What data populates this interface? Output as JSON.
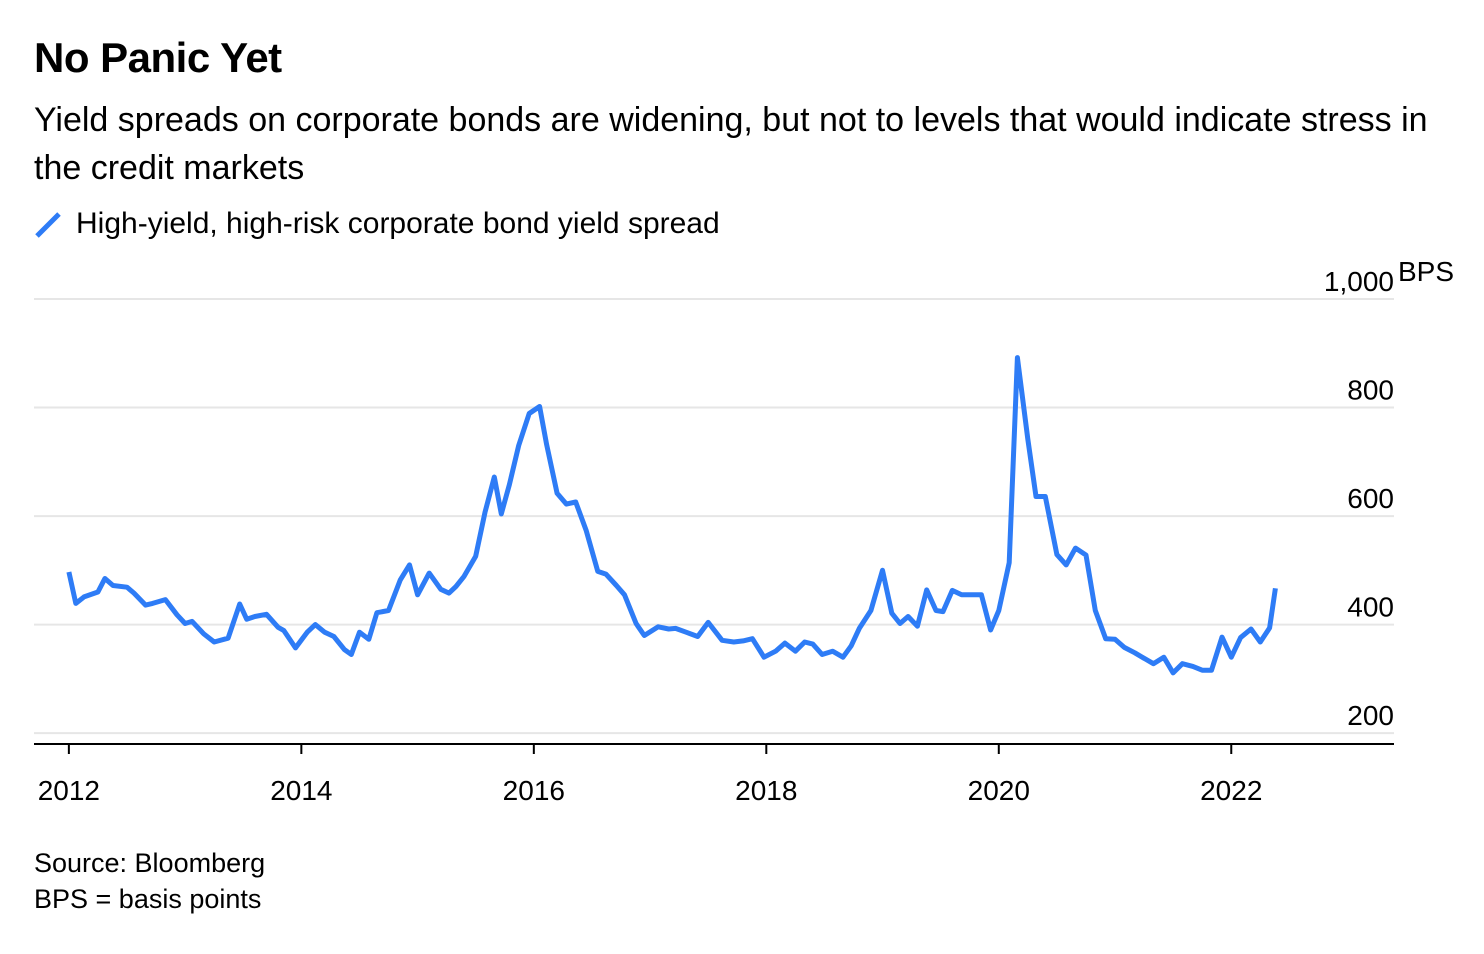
{
  "header": {
    "title": "No Panic Yet",
    "subtitle": "Yield spreads on corporate bonds are widening, but not to levels that would indicate stress in the credit markets"
  },
  "legend": {
    "label": "High-yield, high-risk corporate bond yield spread",
    "color": "#2e7cf6"
  },
  "footer": {
    "source": "Source: Bloomberg",
    "note": "BPS = basis points"
  },
  "chart_data": {
    "type": "line",
    "xlim": [
      2011.7,
      2023.4
    ],
    "ylim": [
      180,
      1000
    ],
    "x_ticks": [
      2012,
      2014,
      2016,
      2018,
      2020,
      2022
    ],
    "x_tick_labels": [
      "2012",
      "2014",
      "2016",
      "2018",
      "2020",
      "2022"
    ],
    "y_ticks": [
      200,
      400,
      600,
      800,
      1000
    ],
    "y_tick_labels": [
      "200",
      "400",
      "600",
      "800",
      "1,000"
    ],
    "y_unit": "BPS",
    "grid": true,
    "series": [
      {
        "name": "High-yield, high-risk corporate bond yield spread",
        "color": "#2e7cf6",
        "x": [
          2012.0,
          2012.06,
          2012.13,
          2012.25,
          2012.31,
          2012.38,
          2012.5,
          2012.56,
          2012.66,
          2012.72,
          2012.83,
          2012.93,
          2013.0,
          2013.06,
          2013.16,
          2013.25,
          2013.37,
          2013.47,
          2013.53,
          2013.6,
          2013.7,
          2013.8,
          2013.85,
          2013.95,
          2014.05,
          2014.12,
          2014.2,
          2014.28,
          2014.37,
          2014.43,
          2014.5,
          2014.58,
          2014.65,
          2014.75,
          2014.85,
          2014.93,
          2015.0,
          2015.1,
          2015.2,
          2015.27,
          2015.33,
          2015.4,
          2015.5,
          2015.58,
          2015.66,
          2015.72,
          2015.79,
          2015.87,
          2015.96,
          2016.05,
          2016.11,
          2016.2,
          2016.28,
          2016.36,
          2016.45,
          2016.55,
          2016.62,
          2016.71,
          2016.78,
          2016.88,
          2016.95,
          2017.07,
          2017.16,
          2017.22,
          2017.31,
          2017.41,
          2017.5,
          2017.62,
          2017.72,
          2017.8,
          2017.88,
          2017.98,
          2018.08,
          2018.16,
          2018.25,
          2018.33,
          2018.4,
          2018.48,
          2018.57,
          2018.66,
          2018.73,
          2018.8,
          2018.9,
          2019.0,
          2019.08,
          2019.15,
          2019.22,
          2019.3,
          2019.38,
          2019.46,
          2019.52,
          2019.6,
          2019.68,
          2019.75,
          2019.85,
          2019.93,
          2020.0,
          2020.09,
          2020.16,
          2020.25,
          2020.32,
          2020.4,
          2020.5,
          2020.58,
          2020.66,
          2020.75,
          2020.83,
          2020.92,
          2021.0,
          2021.08,
          2021.17,
          2021.25,
          2021.33,
          2021.42,
          2021.5,
          2021.58,
          2021.67,
          2021.75,
          2021.83,
          2021.92,
          2022.0,
          2022.08,
          2022.17,
          2022.25,
          2022.33,
          2022.38
        ],
        "values": [
          497,
          439,
          451,
          460,
          485,
          472,
          469,
          458,
          436,
          439,
          446,
          418,
          402,
          406,
          383,
          368,
          375,
          438,
          410,
          415,
          419,
          395,
          389,
          357,
          386,
          400,
          386,
          378,
          354,
          345,
          386,
          373,
          422,
          426,
          482,
          510,
          455,
          495,
          465,
          458,
          470,
          489,
          526,
          607,
          672,
          604,
          658,
          730,
          789,
          802,
          732,
          642,
          622,
          626,
          574,
          498,
          493,
          472,
          455,
          402,
          380,
          396,
          392,
          393,
          386,
          378,
          404,
          371,
          368,
          370,
          374,
          340,
          351,
          366,
          351,
          368,
          364,
          345,
          351,
          340,
          361,
          393,
          426,
          500,
          421,
          402,
          415,
          397,
          464,
          426,
          424,
          463,
          455,
          455,
          455,
          390,
          426,
          514,
          892,
          742,
          636,
          636,
          529,
          510,
          541,
          528,
          426,
          374,
          373,
          358,
          348,
          338,
          328,
          340,
          311,
          328,
          323,
          316,
          316,
          377,
          340,
          376,
          392,
          368,
          394,
          467
        ]
      }
    ]
  }
}
